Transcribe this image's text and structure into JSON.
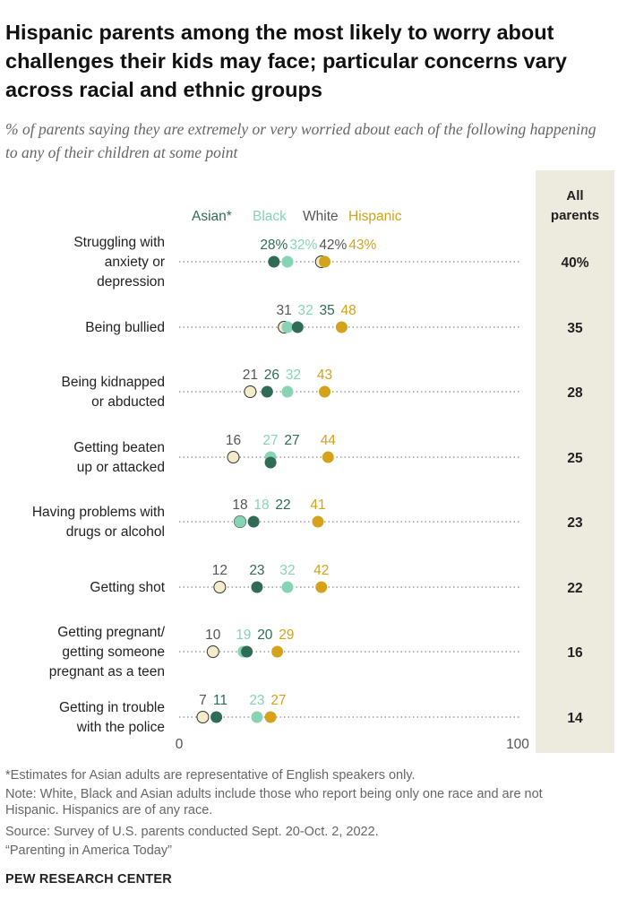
{
  "title": "Hispanic parents among the most likely to worry about challenges their kids may face; particular concerns vary across racial and ethnic groups",
  "subtitle": "% of parents saying they are extremely or very worried about each of the following happening to any of their children at some point",
  "colors": {
    "asian": "#2f6b55",
    "black": "#86d4b5",
    "white": "#f2ecc8",
    "white_stroke": "#333333",
    "hispanic": "#d4a21b",
    "all_parents_bg": "#ecebdd",
    "white_label": "#555555"
  },
  "chart_data": {
    "type": "dot_plot",
    "legend": [
      {
        "key": "asian",
        "label": "Asian*"
      },
      {
        "key": "black",
        "label": "Black"
      },
      {
        "key": "white",
        "label": "White"
      },
      {
        "key": "hispanic",
        "label": "Hispanic"
      }
    ],
    "all_parents_header": [
      "All",
      "parents"
    ],
    "axis": {
      "min": 0,
      "max": 100,
      "tick_labels": [
        "0",
        "100"
      ]
    },
    "categories": [
      {
        "lines": [
          "Struggling with",
          "anxiety or",
          "depression"
        ],
        "asian": 28,
        "black": 32,
        "white": 42,
        "hispanic": 43,
        "all": 40,
        "labels": {
          "asian": "28%",
          "black": "32%",
          "white": "42%",
          "hispanic": "43%"
        },
        "all_label": "40%"
      },
      {
        "lines": [
          "Being bullied"
        ],
        "asian": 35,
        "black": 32,
        "white": 31,
        "hispanic": 48,
        "all": 35,
        "labels": {
          "asian": "35",
          "black": "32",
          "white": "31",
          "hispanic": "48"
        },
        "all_label": "35"
      },
      {
        "lines": [
          "Being kidnapped",
          "or abducted"
        ],
        "asian": 26,
        "black": 32,
        "white": 21,
        "hispanic": 43,
        "all": 28,
        "labels": {
          "asian": "26",
          "black": "32",
          "white": "21",
          "hispanic": "43"
        },
        "all_label": "28"
      },
      {
        "lines": [
          "Getting beaten",
          "up or attacked"
        ],
        "asian": 27,
        "black": 27,
        "white": 16,
        "hispanic": 44,
        "all": 25,
        "labels": {
          "asian": "27",
          "black": "27",
          "white": "16",
          "hispanic": "44"
        },
        "all_label": "25"
      },
      {
        "lines": [
          "Having problems with",
          "drugs or alcohol"
        ],
        "asian": 22,
        "black": 18,
        "white": 18,
        "hispanic": 41,
        "all": 23,
        "labels": {
          "asian": "22",
          "black": "18",
          "white": "18",
          "hispanic": "41"
        },
        "all_label": "23"
      },
      {
        "lines": [
          "Getting shot"
        ],
        "asian": 23,
        "black": 32,
        "white": 12,
        "hispanic": 42,
        "all": 22,
        "labels": {
          "asian": "23",
          "black": "32",
          "white": "12",
          "hispanic": "42"
        },
        "all_label": "22"
      },
      {
        "lines": [
          "Getting pregnant/",
          "getting someone",
          "pregnant as a teen"
        ],
        "asian": 20,
        "black": 19,
        "white": 10,
        "hispanic": 29,
        "all": 16,
        "labels": {
          "asian": "20",
          "black": "19",
          "white": "10",
          "hispanic": "29"
        },
        "all_label": "16"
      },
      {
        "lines": [
          "Getting in trouble",
          "with the police"
        ],
        "asian": 11,
        "black": 23,
        "white": 7,
        "hispanic": 27,
        "all": 14,
        "labels": {
          "asian": "11",
          "black": "23",
          "white": "7",
          "hispanic": "27"
        },
        "all_label": "14"
      }
    ]
  },
  "notes": {
    "asterisk": "*Estimates for Asian adults are representative of English speakers only.",
    "note": "Note: White, Black and Asian adults include those who report being only one race and are not Hispanic. Hispanics are of any race.",
    "source": "Source: Survey of U.S. parents conducted Sept. 20-Oct. 2, 2022.",
    "report": "“Parenting in America Today”"
  },
  "brand": "PEW RESEARCH CENTER"
}
